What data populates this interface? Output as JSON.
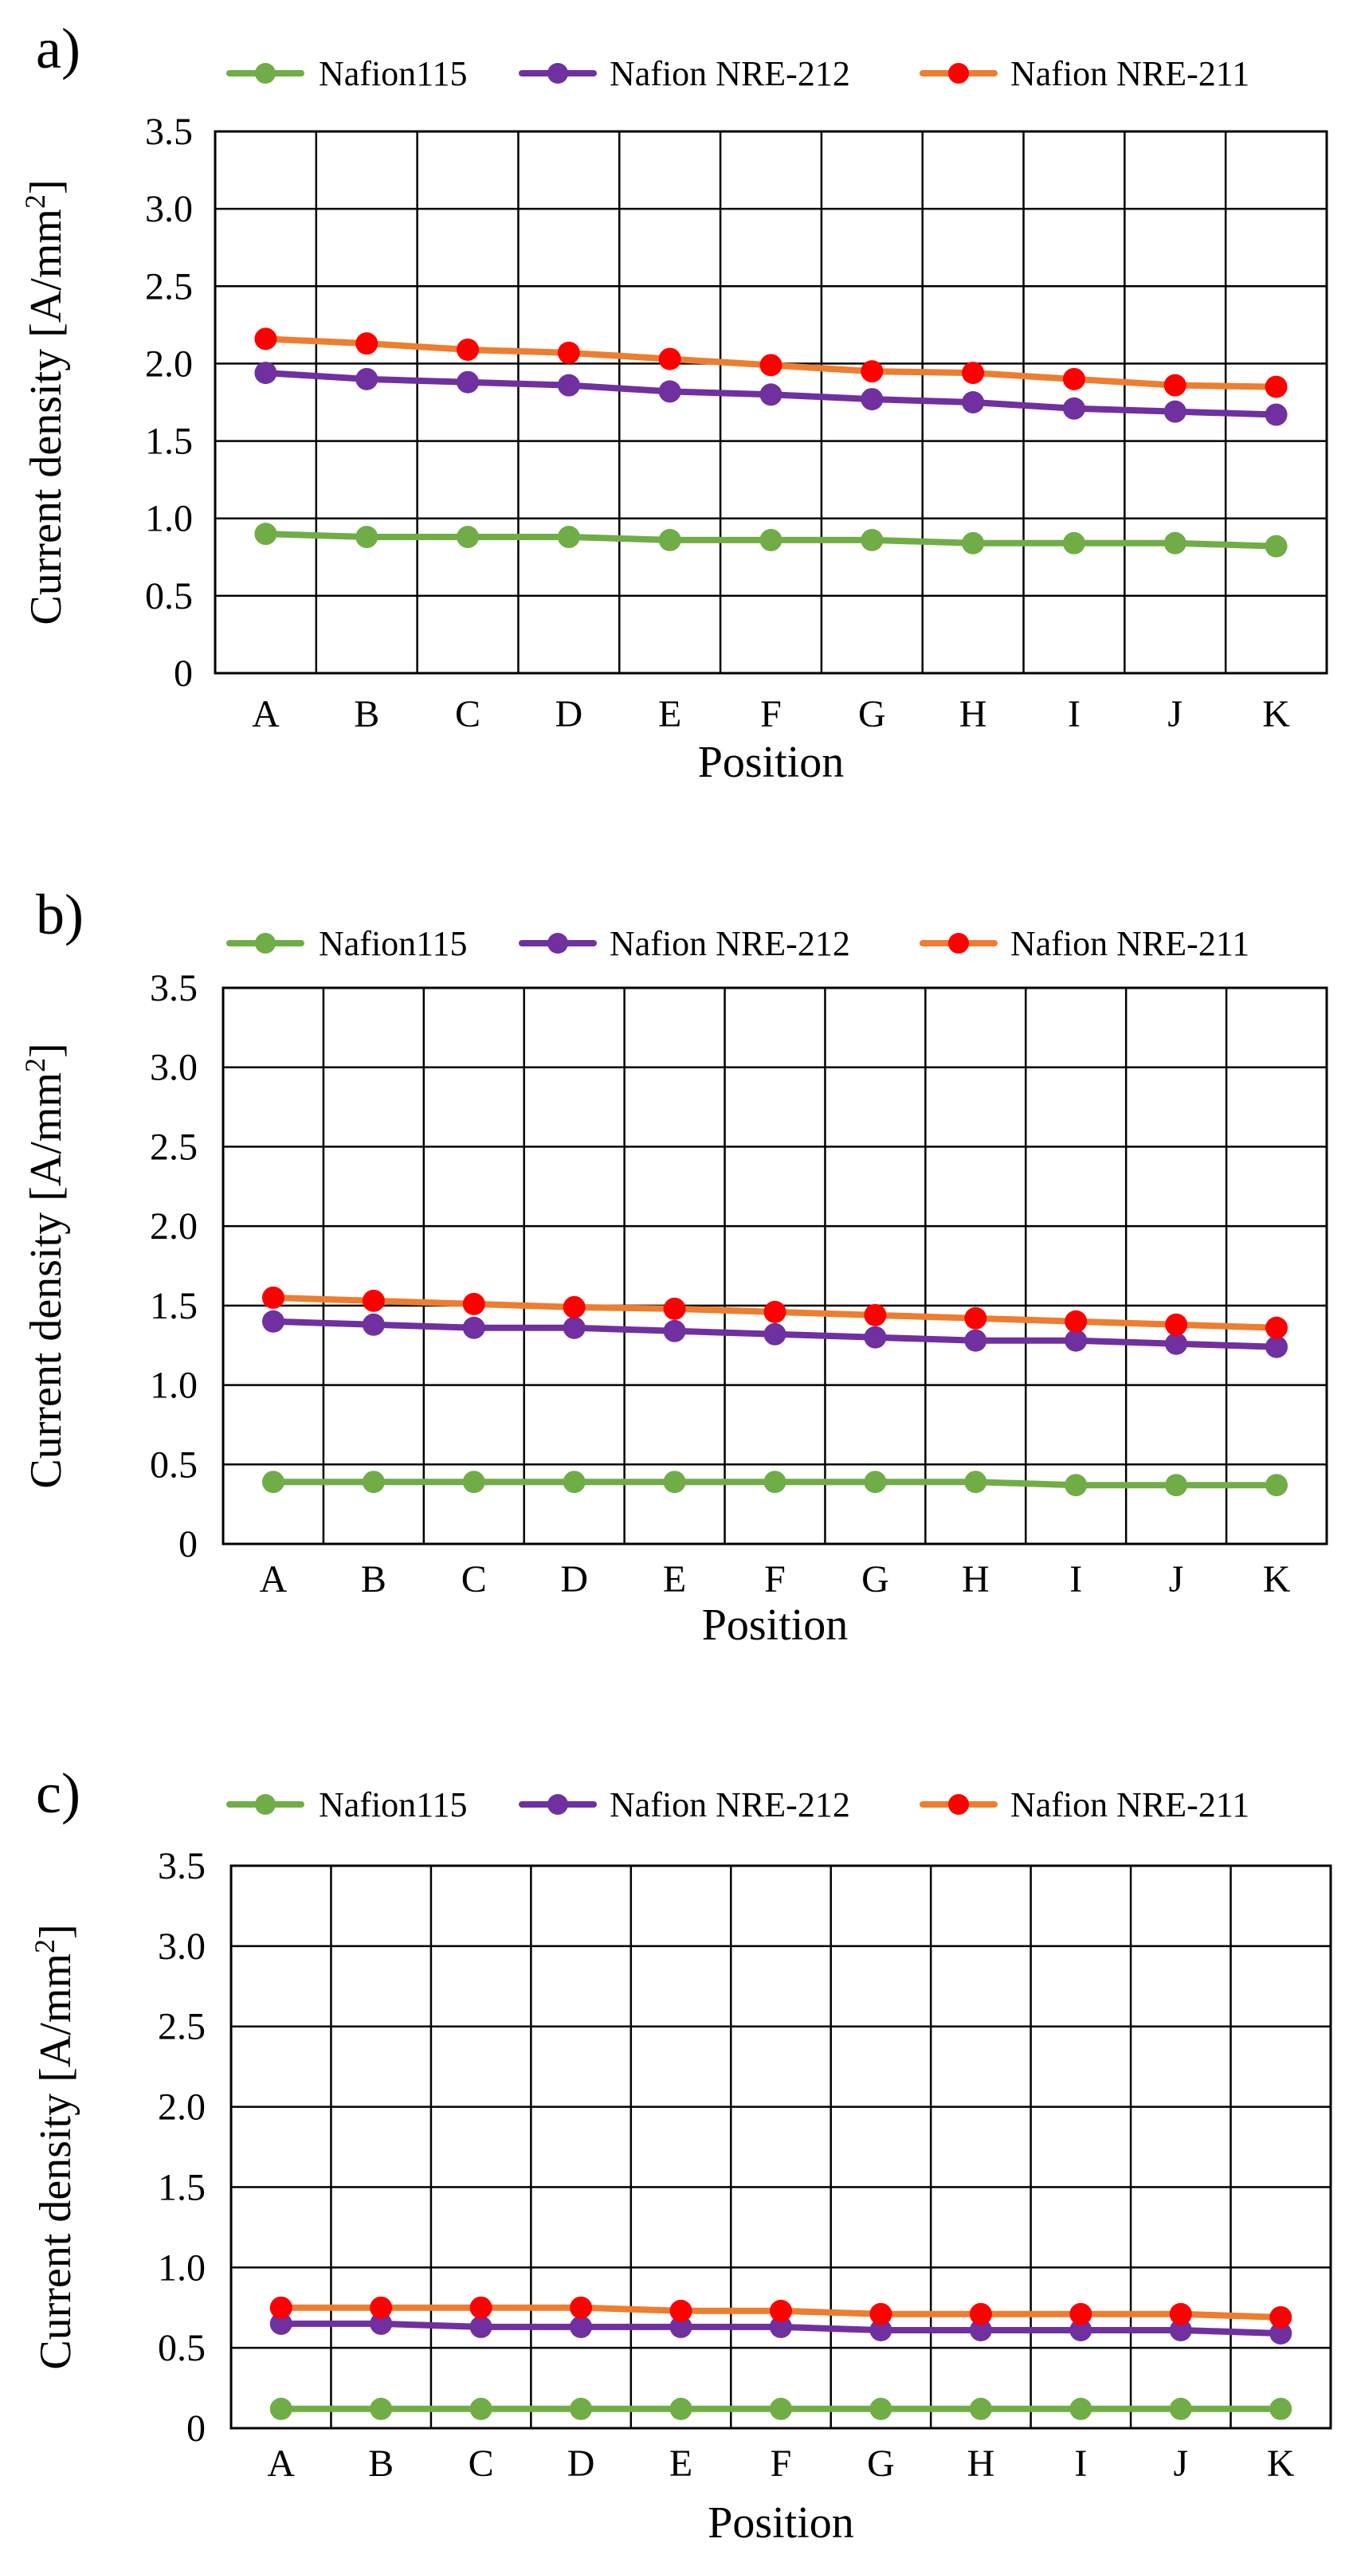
{
  "chart_data": [
    {
      "panel_label": "a)",
      "type": "line",
      "xlabel": "Position",
      "ylabel_text": "Current density [A/mm",
      "ylabel_sup": "2",
      "ylabel_close": "]",
      "ylim": [
        0,
        3.5
      ],
      "yticks": [
        0,
        0.5,
        1.0,
        1.5,
        2.0,
        2.5,
        3.0,
        3.5
      ],
      "ytick_labels": [
        "0",
        "0.5",
        "1.0",
        "1.5",
        "2.0",
        "2.5",
        "3.0",
        "3.5"
      ],
      "categories": [
        "A",
        "B",
        "C",
        "D",
        "E",
        "F",
        "G",
        "H",
        "I",
        "J",
        "K"
      ],
      "grid": true,
      "legend": "top",
      "series": [
        {
          "name": "Nafion115",
          "line_color": "#70ad47",
          "marker_color": "#70ad47",
          "values": [
            0.9,
            0.88,
            0.88,
            0.88,
            0.86,
            0.86,
            0.86,
            0.84,
            0.84,
            0.84,
            0.82
          ]
        },
        {
          "name": "Nafion NRE-212",
          "line_color": "#7030a0",
          "marker_color": "#7030a0",
          "values": [
            1.94,
            1.9,
            1.88,
            1.86,
            1.82,
            1.8,
            1.77,
            1.75,
            1.71,
            1.69,
            1.67
          ]
        },
        {
          "name": "Nafion NRE-211",
          "line_color": "#ed7d31",
          "marker_color": "#ff0000",
          "values": [
            2.16,
            2.13,
            2.09,
            2.07,
            2.03,
            1.99,
            1.95,
            1.94,
            1.9,
            1.86,
            1.85
          ]
        }
      ]
    },
    {
      "panel_label": "b)",
      "type": "line",
      "xlabel": "Position",
      "ylabel_text": "Current density [A/mm",
      "ylabel_sup": "2",
      "ylabel_close": "]",
      "ylim": [
        0,
        3.5
      ],
      "yticks": [
        0,
        0.5,
        1.0,
        1.5,
        2.0,
        2.5,
        3.0,
        3.5
      ],
      "ytick_labels": [
        "0",
        "0.5",
        "1.0",
        "1.5",
        "2.0",
        "2.5",
        "3.0",
        "3.5"
      ],
      "categories": [
        "A",
        "B",
        "C",
        "D",
        "E",
        "F",
        "G",
        "H",
        "I",
        "J",
        "K"
      ],
      "grid": true,
      "legend": "top",
      "series": [
        {
          "name": "Nafion115",
          "line_color": "#70ad47",
          "marker_color": "#70ad47",
          "values": [
            0.39,
            0.39,
            0.39,
            0.39,
            0.39,
            0.39,
            0.39,
            0.39,
            0.37,
            0.37,
            0.37
          ]
        },
        {
          "name": "Nafion NRE-212",
          "line_color": "#7030a0",
          "marker_color": "#7030a0",
          "values": [
            1.4,
            1.38,
            1.36,
            1.36,
            1.34,
            1.32,
            1.3,
            1.28,
            1.28,
            1.26,
            1.24
          ]
        },
        {
          "name": "Nafion NRE-211",
          "line_color": "#ed7d31",
          "marker_color": "#ff0000",
          "values": [
            1.55,
            1.53,
            1.51,
            1.49,
            1.48,
            1.46,
            1.44,
            1.42,
            1.4,
            1.38,
            1.36
          ]
        }
      ]
    },
    {
      "panel_label": "c)",
      "type": "line",
      "xlabel": "Position",
      "ylabel_text": "Current density [A/mm",
      "ylabel_sup": "2",
      "ylabel_close": "]",
      "ylim": [
        0,
        3.5
      ],
      "yticks": [
        0,
        0.5,
        1.0,
        1.5,
        2.0,
        2.5,
        3.0,
        3.5
      ],
      "ytick_labels": [
        "0",
        "0.5",
        "1.0",
        "1.5",
        "2.0",
        "2.5",
        "3.0",
        "3.5"
      ],
      "categories": [
        "A",
        "B",
        "C",
        "D",
        "E",
        "F",
        "G",
        "H",
        "I",
        "J",
        "K"
      ],
      "grid": true,
      "legend": "top",
      "series": [
        {
          "name": "Nafion115",
          "line_color": "#70ad47",
          "marker_color": "#70ad47",
          "values": [
            0.12,
            0.12,
            0.12,
            0.12,
            0.12,
            0.12,
            0.12,
            0.12,
            0.12,
            0.12,
            0.12
          ]
        },
        {
          "name": "Nafion NRE-212",
          "line_color": "#7030a0",
          "marker_color": "#7030a0",
          "values": [
            0.65,
            0.65,
            0.63,
            0.63,
            0.63,
            0.63,
            0.61,
            0.61,
            0.61,
            0.61,
            0.59
          ]
        },
        {
          "name": "Nafion NRE-211",
          "line_color": "#ed7d31",
          "marker_color": "#ff0000",
          "values": [
            0.75,
            0.75,
            0.75,
            0.75,
            0.73,
            0.73,
            0.71,
            0.71,
            0.71,
            0.71,
            0.69
          ]
        }
      ]
    }
  ]
}
